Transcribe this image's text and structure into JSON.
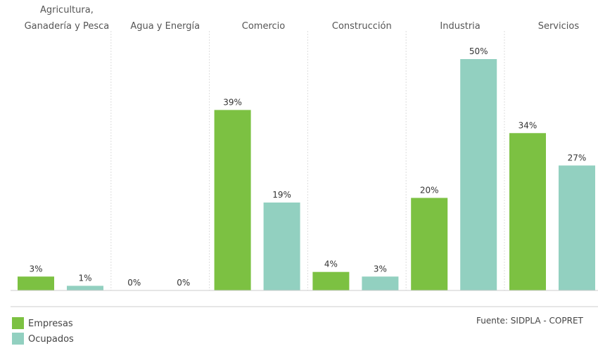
{
  "chart_data": {
    "type": "bar",
    "categories": [
      [
        "Agricultura,",
        "Ganadería y Pesca"
      ],
      [
        "Agua y Energía"
      ],
      [
        "Comercio"
      ],
      [
        "Construcción"
      ],
      [
        "Industria"
      ],
      [
        "Servicios"
      ]
    ],
    "series": [
      {
        "name": "Empresas",
        "values": [
          3,
          0,
          39,
          4,
          20,
          34
        ],
        "color": "#7cc142"
      },
      {
        "name": "Ocupados",
        "values": [
          1,
          0,
          19,
          3,
          50,
          27
        ],
        "color": "#92d0c0"
      }
    ],
    "value_suffix": "%",
    "ylim": [
      0,
      50
    ],
    "grid": "vertical dotted separators between categories",
    "legend_position": "bottom-left",
    "source": "Fuente: SIDPLA - COPRET"
  }
}
